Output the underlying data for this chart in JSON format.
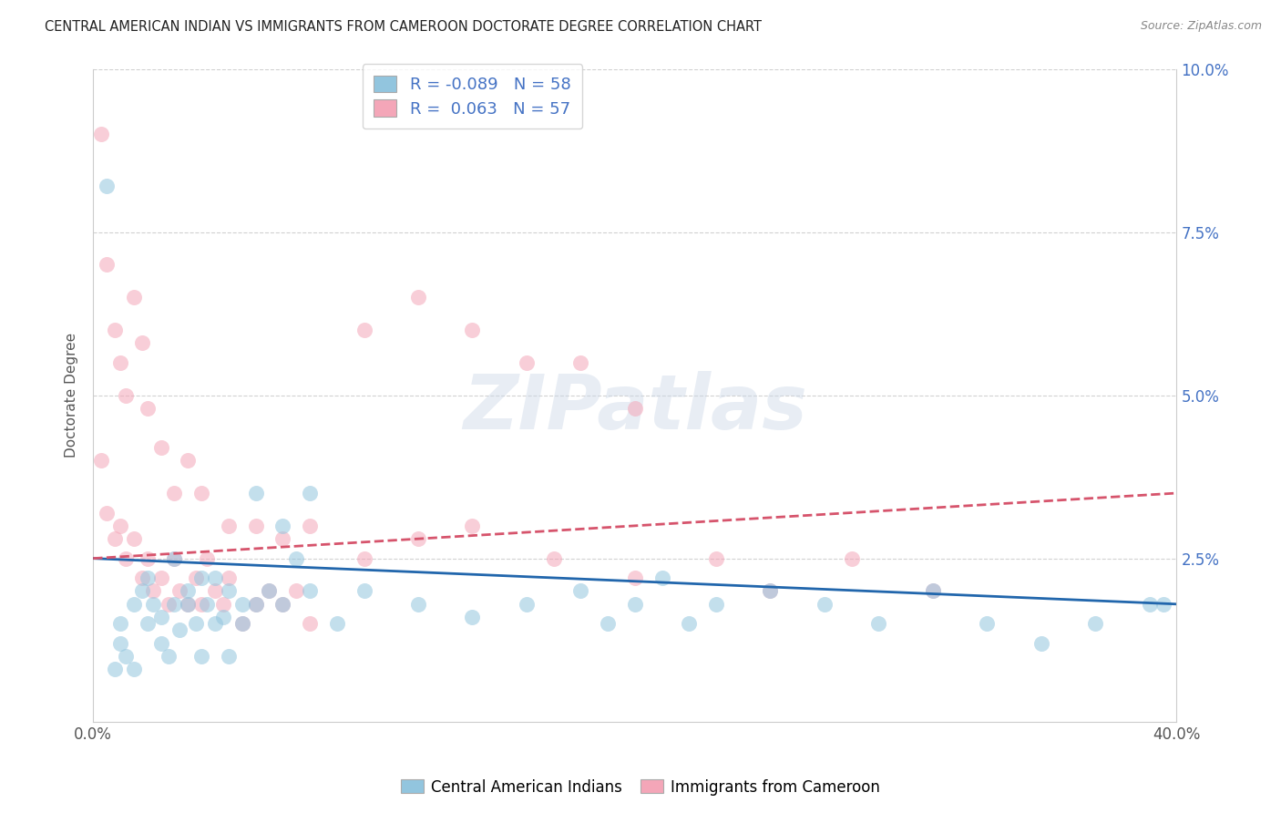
{
  "title": "CENTRAL AMERICAN INDIAN VS IMMIGRANTS FROM CAMEROON DOCTORATE DEGREE CORRELATION CHART",
  "source": "Source: ZipAtlas.com",
  "ylabel": "Doctorate Degree",
  "xlabel": "",
  "watermark": "ZIPatlas",
  "xlim": [
    0.0,
    0.4
  ],
  "ylim": [
    0.0,
    0.1
  ],
  "xtick_positions": [
    0.0,
    0.4
  ],
  "xtick_labels": [
    "0.0%",
    "40.0%"
  ],
  "ytick_positions": [
    0.0,
    0.025,
    0.05,
    0.075,
    0.1
  ],
  "ytick_labels": [
    "",
    "2.5%",
    "5.0%",
    "7.5%",
    "10.0%"
  ],
  "legend_R1": "R = -0.089",
  "legend_N1": "N = 58",
  "legend_R2": "R =  0.063",
  "legend_N2": "N = 57",
  "color_blue": "#92c5de",
  "color_pink": "#f4a6b8",
  "trendline_blue": "#2166ac",
  "trendline_pink": "#d6546c",
  "background": "#ffffff",
  "grid_color": "#cccccc",
  "blue_scatter_x": [
    0.005,
    0.01,
    0.012,
    0.015,
    0.018,
    0.02,
    0.022,
    0.025,
    0.028,
    0.03,
    0.032,
    0.035,
    0.038,
    0.04,
    0.042,
    0.045,
    0.048,
    0.05,
    0.055,
    0.06,
    0.065,
    0.07,
    0.075,
    0.08,
    0.09,
    0.1,
    0.12,
    0.14,
    0.16,
    0.18,
    0.19,
    0.2,
    0.21,
    0.22,
    0.23,
    0.25,
    0.27,
    0.29,
    0.31,
    0.33,
    0.35,
    0.37,
    0.39,
    0.008,
    0.01,
    0.015,
    0.02,
    0.025,
    0.03,
    0.035,
    0.04,
    0.045,
    0.05,
    0.055,
    0.06,
    0.07,
    0.08,
    0.395
  ],
  "blue_scatter_y": [
    0.082,
    0.015,
    0.01,
    0.008,
    0.02,
    0.015,
    0.018,
    0.012,
    0.01,
    0.018,
    0.014,
    0.02,
    0.015,
    0.01,
    0.018,
    0.022,
    0.016,
    0.02,
    0.015,
    0.018,
    0.02,
    0.018,
    0.025,
    0.02,
    0.015,
    0.02,
    0.018,
    0.016,
    0.018,
    0.02,
    0.015,
    0.018,
    0.022,
    0.015,
    0.018,
    0.02,
    0.018,
    0.015,
    0.02,
    0.015,
    0.012,
    0.015,
    0.018,
    0.008,
    0.012,
    0.018,
    0.022,
    0.016,
    0.025,
    0.018,
    0.022,
    0.015,
    0.01,
    0.018,
    0.035,
    0.03,
    0.035,
    0.018
  ],
  "pink_scatter_x": [
    0.003,
    0.005,
    0.008,
    0.01,
    0.012,
    0.015,
    0.018,
    0.02,
    0.022,
    0.025,
    0.028,
    0.03,
    0.032,
    0.035,
    0.038,
    0.04,
    0.042,
    0.045,
    0.048,
    0.05,
    0.055,
    0.06,
    0.065,
    0.07,
    0.075,
    0.08,
    0.003,
    0.005,
    0.008,
    0.01,
    0.012,
    0.015,
    0.018,
    0.02,
    0.025,
    0.03,
    0.035,
    0.04,
    0.05,
    0.06,
    0.07,
    0.08,
    0.1,
    0.12,
    0.14,
    0.17,
    0.2,
    0.23,
    0.25,
    0.28,
    0.31,
    0.1,
    0.12,
    0.14,
    0.16,
    0.18,
    0.2
  ],
  "pink_scatter_y": [
    0.04,
    0.032,
    0.028,
    0.03,
    0.025,
    0.028,
    0.022,
    0.025,
    0.02,
    0.022,
    0.018,
    0.025,
    0.02,
    0.018,
    0.022,
    0.018,
    0.025,
    0.02,
    0.018,
    0.022,
    0.015,
    0.018,
    0.02,
    0.018,
    0.02,
    0.015,
    0.09,
    0.07,
    0.06,
    0.055,
    0.05,
    0.065,
    0.058,
    0.048,
    0.042,
    0.035,
    0.04,
    0.035,
    0.03,
    0.03,
    0.028,
    0.03,
    0.025,
    0.028,
    0.03,
    0.025,
    0.022,
    0.025,
    0.02,
    0.025,
    0.02,
    0.06,
    0.065,
    0.06,
    0.055,
    0.055,
    0.048
  ],
  "blue_trend_x": [
    0.0,
    0.4
  ],
  "blue_trend_y": [
    0.025,
    0.018
  ],
  "pink_trend_x": [
    0.0,
    0.4
  ],
  "pink_trend_y": [
    0.025,
    0.035
  ]
}
